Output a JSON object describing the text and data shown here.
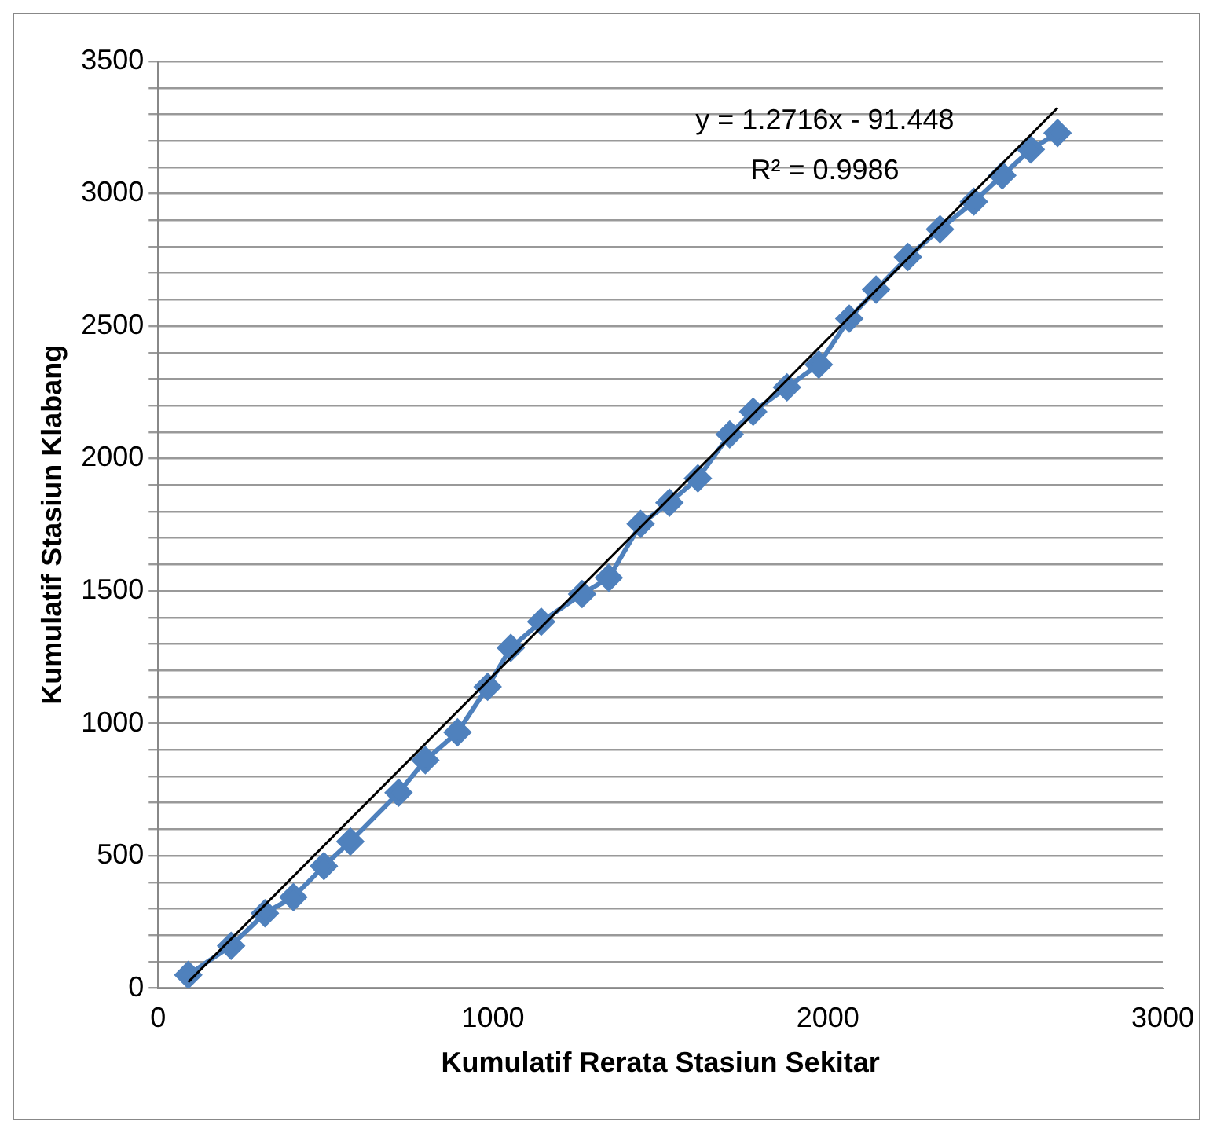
{
  "chart_data": {
    "type": "line",
    "xlabel": "Kumulatif Rerata Stasiun Sekitar",
    "ylabel": "Kumulatif Stasiun Klabang",
    "xlim": [
      0,
      3000
    ],
    "xticks": [
      0,
      1000,
      2000,
      3000
    ],
    "ylim": [
      0,
      3500
    ],
    "yticks": [
      0,
      {
        "value": 100,
        "label": null
      },
      {
        "value": 200,
        "label": null
      },
      {
        "value": 300,
        "label": null
      },
      {
        "value": 400,
        "label": null
      },
      500,
      {
        "value": 600,
        "label": null
      },
      {
        "value": 700,
        "label": null
      },
      {
        "value": 800,
        "label": null
      },
      {
        "value": 900,
        "label": null
      },
      1000,
      {
        "value": 1100,
        "label": null
      },
      {
        "value": 1200,
        "label": null
      },
      {
        "value": 1300,
        "label": null
      },
      {
        "value": 1400,
        "label": null
      },
      1500,
      {
        "value": 1600,
        "label": null
      },
      {
        "value": 1700,
        "label": null
      },
      {
        "value": 1800,
        "label": null
      },
      {
        "value": 1900,
        "label": null
      },
      2000,
      {
        "value": 2100,
        "label": null
      },
      {
        "value": 2200,
        "label": null
      },
      {
        "value": 2300,
        "label": null
      },
      {
        "value": 2400,
        "label": null
      },
      2500,
      {
        "value": 2600,
        "label": null
      },
      {
        "value": 2700,
        "label": null
      },
      {
        "value": 2800,
        "label": null
      },
      {
        "value": 2900,
        "label": null
      },
      3000,
      {
        "value": 3100,
        "label": null
      },
      {
        "value": 3200,
        "label": null
      },
      {
        "value": 3300,
        "label": null
      },
      {
        "value": 3400,
        "label": null
      },
      3500
    ],
    "grid": "y",
    "legend": false,
    "series": [
      {
        "color": "#4f81bd",
        "marker": "diamond",
        "x": [
          90,
          218,
          319,
          404,
          495,
          574,
          718,
          798,
          894,
          984,
          1053,
          1144,
          1266,
          1346,
          1441,
          1527,
          1612,
          1707,
          1777,
          1878,
          1973,
          2064,
          2144,
          2239,
          2335,
          2436,
          2521,
          2606,
          2686
        ],
        "values": [
          50,
          160,
          283,
          344,
          461,
          554,
          738,
          861,
          966,
          1138,
          1285,
          1384,
          1488,
          1550,
          1753,
          1833,
          1925,
          2091,
          2177,
          2269,
          2355,
          2528,
          2638,
          2761,
          2866,
          2970,
          3069,
          3167,
          3229
        ]
      },
      {
        "color": "#000000",
        "marker": "none",
        "x": [
          90,
          2686
        ],
        "values": [
          23,
          3324
        ]
      }
    ],
    "annotations": [
      "y = 1.2716x - 91.448",
      "R² = 0.9986"
    ]
  }
}
